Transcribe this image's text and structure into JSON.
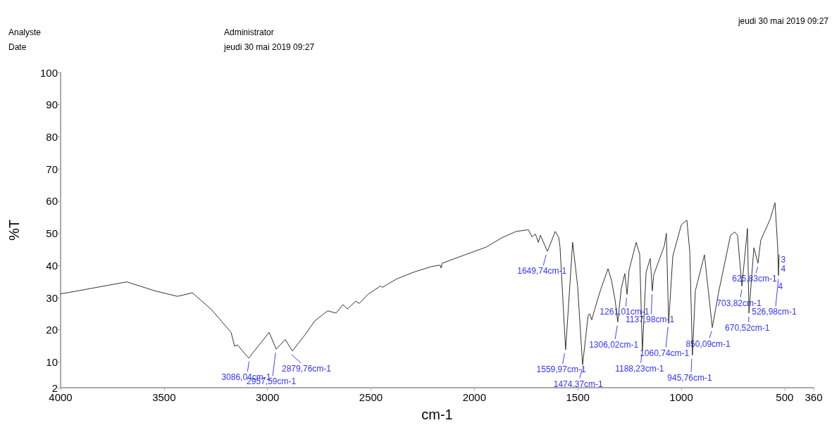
{
  "chart_data": {
    "type": "line",
    "xlabel": "cm-1",
    "ylabel": "%T",
    "xlim": [
      4000,
      360
    ],
    "xticks": [
      4000,
      3500,
      3000,
      2500,
      2000,
      1500,
      1000,
      500,
      360
    ],
    "ylim": [
      2,
      100
    ],
    "yticks": [
      2,
      10,
      20,
      30,
      40,
      50,
      60,
      70,
      80,
      90,
      100
    ],
    "grid": false,
    "marker": "none",
    "line_style": "solid",
    "series": [
      {
        "color": "#333333",
        "x": [
          4000,
          3969,
          3680,
          3544,
          3435,
          3363,
          3271,
          3176,
          3159,
          3145,
          3091,
          2992,
          2958,
          2914,
          2880,
          2818,
          2771,
          2709,
          2669,
          2635,
          2614,
          2573,
          2556,
          2515,
          2454,
          2444,
          2376,
          2294,
          2206,
          2165,
          2161,
          2155,
          2046,
          1943,
          1865,
          1797,
          1739,
          1722,
          1705,
          1691,
          1681,
          1647,
          1609,
          1592,
          1586,
          1559,
          1525,
          1501,
          1477,
          1450,
          1443,
          1433,
          1405,
          1388,
          1354,
          1337,
          1320,
          1307,
          1290,
          1273,
          1262,
          1252,
          1218,
          1201,
          1188,
          1170,
          1150,
          1140,
          1133,
          1082,
          1072,
          1061,
          1041,
          1000,
          973,
          959,
          946,
          932,
          888,
          850,
          820,
          762,
          742,
          728,
          707,
          680,
          673,
          649,
          629,
          616,
          571,
          547,
          534,
          530,
          527
        ],
        "values": [
          31.2,
          31.5,
          34.9,
          32.1,
          30.4,
          31.5,
          26.3,
          19.2,
          14.9,
          15.3,
          11.2,
          19.2,
          14.0,
          17.0,
          13.4,
          18.5,
          22.8,
          25.9,
          25.2,
          27.8,
          26.5,
          28.9,
          28.2,
          31.0,
          33.6,
          33.2,
          35.8,
          37.9,
          39.7,
          40.1,
          39.2,
          40.7,
          43.3,
          45.7,
          48.7,
          50.6,
          51.1,
          48.9,
          49.8,
          47.2,
          49.4,
          44.4,
          50.6,
          48.7,
          45.7,
          13.8,
          47.2,
          33.6,
          9.1,
          24.6,
          25.0,
          23.1,
          29.3,
          32.8,
          39.0,
          35.3,
          29.3,
          22.4,
          32.8,
          37.5,
          31.0,
          38.6,
          47.2,
          43.5,
          13.4,
          37.9,
          42.2,
          32.1,
          37.1,
          46.1,
          50.0,
          22.0,
          42.9,
          52.6,
          54.1,
          44.4,
          12.1,
          32.1,
          43.3,
          20.7,
          31.5,
          49.4,
          50.4,
          49.4,
          33.6,
          51.5,
          25.2,
          45.5,
          40.7,
          47.8,
          54.3,
          59.5,
          45.7,
          36.9,
          43.3
        ]
      }
    ],
    "annotations": [
      "Analyste",
      "Administrator",
      "Date",
      "jeudi 30 mai 2019 09:27",
      "jeudi 30 mai 2019 09:27",
      {
        "text": "3086,04cm-1",
        "x": 3086.04,
        "y": 11.2
      },
      {
        "text": "2957,59cm-1",
        "x": 2957.59,
        "y": 14.0
      },
      {
        "text": "2879,76cm-1",
        "x": 2879.76,
        "y": 13.4
      },
      {
        "text": "1649,74cm-1",
        "x": 1649.74,
        "y": 44.4
      },
      {
        "text": "1559,97cm-1",
        "x": 1559.97,
        "y": 13.8
      },
      {
        "text": "1474,37cm-1",
        "x": 1474.37,
        "y": 9.1
      },
      {
        "text": "1306,02cm-1",
        "x": 1306.02,
        "y": 22.4
      },
      {
        "text": "1261,01cm-1",
        "x": 1261.01,
        "y": 31.0
      },
      {
        "text": "1188,23cm-1",
        "x": 1188.23,
        "y": 13.4
      },
      {
        "text": "1137,98cm-1",
        "x": 1137.98,
        "y": 32.1
      },
      {
        "text": "1060,74cm-1",
        "x": 1060.74,
        "y": 22.0
      },
      {
        "text": "945,76cm-1",
        "x": 945.76,
        "y": 12.1
      },
      {
        "text": "850,09cm-1",
        "x": 850.09,
        "y": 20.7
      },
      {
        "text": "703,82cm-1",
        "x": 703.82,
        "y": 33.6
      },
      {
        "text": "670,52cm-1",
        "x": 670.52,
        "y": 25.2
      },
      {
        "text": "625,83cm-1",
        "x": 625.83,
        "y": 40.7
      },
      {
        "text": "526,98cm-1",
        "x": 526.98,
        "y": 36.9
      },
      "3",
      "4",
      "4"
    ]
  }
}
